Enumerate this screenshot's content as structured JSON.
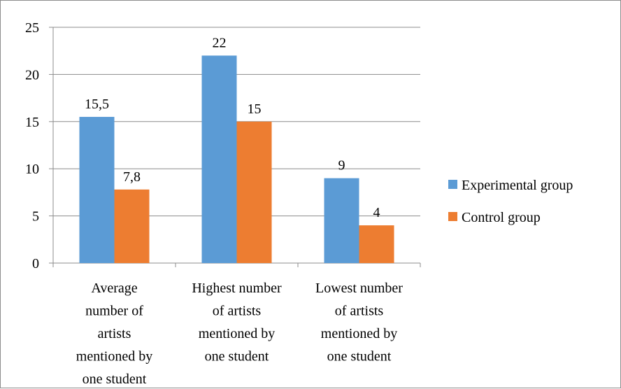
{
  "chart_data": {
    "type": "bar",
    "categories": [
      [
        "Average",
        "number of",
        "artists",
        "mentioned by",
        "one student"
      ],
      [
        "Highest number",
        "of artists",
        "mentioned by",
        "one student"
      ],
      [
        "Lowest number",
        "of artists",
        "mentioned by",
        "one student"
      ]
    ],
    "series": [
      {
        "name": "Experimental group",
        "values": [
          15.5,
          22,
          9
        ],
        "labels": [
          "15,5",
          "22",
          "9"
        ],
        "color": "#5b9bd5"
      },
      {
        "name": "Control group",
        "values": [
          7.8,
          15,
          4
        ],
        "labels": [
          "7,8",
          "15",
          "4"
        ],
        "color": "#ed7d31"
      }
    ],
    "ylim": [
      0,
      25
    ],
    "yticks": [
      "0",
      "5",
      "10",
      "15",
      "20",
      "25"
    ],
    "grid": true,
    "legend": "right",
    "title": "",
    "xlabel": "",
    "ylabel": ""
  }
}
